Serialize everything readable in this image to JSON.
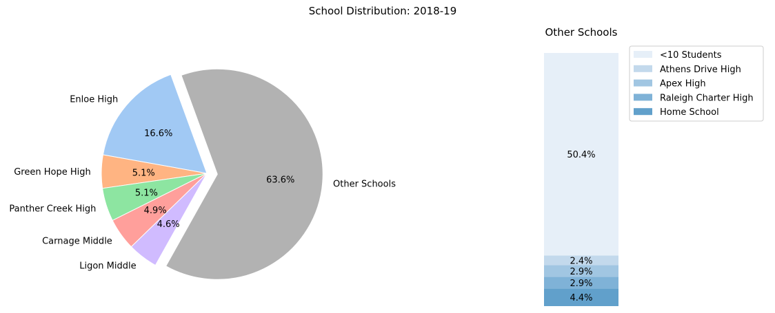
{
  "title": "School Distribution: 2018-19",
  "chart_data": [
    {
      "type": "pie",
      "slices": [
        {
          "label": "Enloe High",
          "value": 16.6,
          "pct_label": "16.6%",
          "color": "#a1c9f4"
        },
        {
          "label": "Green Hope High",
          "value": 5.1,
          "pct_label": "5.1%",
          "color": "#ffb482"
        },
        {
          "label": "Panther Creek High",
          "value": 5.1,
          "pct_label": "5.1%",
          "color": "#8de5a1"
        },
        {
          "label": "Carnage Middle",
          "value": 4.9,
          "pct_label": "4.9%",
          "color": "#ff9f9b"
        },
        {
          "label": "Ligon Middle",
          "value": 4.6,
          "pct_label": "4.6%",
          "color": "#d0bbff"
        },
        {
          "label": "Other Schools",
          "value": 63.6,
          "pct_label": "63.6%",
          "color": "#b2b2b2",
          "exploded": true
        }
      ]
    },
    {
      "type": "bar",
      "stacked": true,
      "title": "Other Schools",
      "legend_position": "right",
      "series": [
        {
          "name": "Home School",
          "value": 4.4,
          "label": "4.4%",
          "color": "#61a0cb"
        },
        {
          "name": "Raleigh Charter High",
          "value": 2.9,
          "label": "2.9%",
          "color": "#7fb2d7"
        },
        {
          "name": "Apex High",
          "value": 2.9,
          "label": "2.9%",
          "color": "#a1c6e2"
        },
        {
          "name": "Athens Drive High",
          "value": 2.4,
          "label": "2.4%",
          "color": "#c3d9ec"
        },
        {
          "name": "<10 Students",
          "value": 50.4,
          "label": "50.4%",
          "color": "#e6eff8"
        }
      ]
    }
  ]
}
